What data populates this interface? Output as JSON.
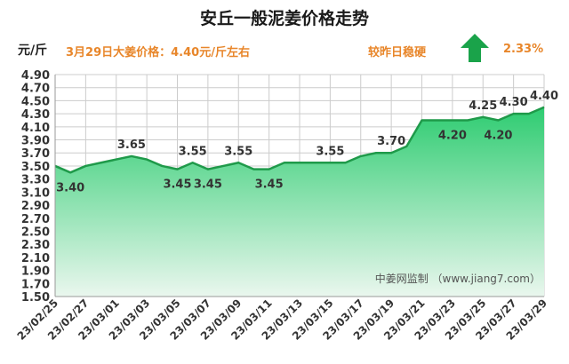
{
  "header": {
    "title": "安丘一般泥姜价格走势",
    "unit": "元/斤",
    "price_statement": "3月29日大姜价格：4.40元/斤左右",
    "compare_text": "较昨日稳硬",
    "change_pct": "2.33%",
    "trend_icon": "up-arrow-icon"
  },
  "colors": {
    "accent_orange": "#e8862a",
    "line_green": "#1f9a4a",
    "fill_top": "#2ecc71",
    "fill_bottom": "#eaf7ee",
    "arrow_green": "#1aa34a",
    "grid": "#cccccc"
  },
  "chart_data": {
    "type": "area",
    "x": [
      "23/02/25",
      "23/02/26",
      "23/02/27",
      "23/02/28",
      "23/03/01",
      "23/03/02",
      "23/03/03",
      "23/03/04",
      "23/03/05",
      "23/03/06",
      "23/03/07",
      "23/03/08",
      "23/03/09",
      "23/03/10",
      "23/03/11",
      "23/03/12",
      "23/03/13",
      "23/03/14",
      "23/03/15",
      "23/03/16",
      "23/03/17",
      "23/03/18",
      "23/03/19",
      "23/03/20",
      "23/03/21",
      "23/03/22",
      "23/03/23",
      "23/03/24",
      "23/03/25",
      "23/03/26",
      "23/03/27",
      "23/03/28",
      "23/03/29"
    ],
    "series": [
      {
        "values": [
          3.5,
          3.4,
          3.5,
          3.55,
          3.6,
          3.65,
          3.6,
          3.5,
          3.45,
          3.55,
          3.45,
          3.5,
          3.55,
          3.45,
          3.45,
          3.55,
          3.55,
          3.55,
          3.55,
          3.55,
          3.65,
          3.7,
          3.7,
          3.8,
          4.2,
          4.2,
          4.2,
          4.2,
          4.25,
          4.2,
          4.3,
          4.3,
          4.4
        ]
      }
    ],
    "x_tick_labels": [
      "23/02/25",
      "23/02/27",
      "23/03/01",
      "23/03/03",
      "23/03/05",
      "23/03/07",
      "23/03/09",
      "23/03/11",
      "23/03/13",
      "23/03/15",
      "23/03/17",
      "23/03/19",
      "23/03/21",
      "23/03/23",
      "23/03/25",
      "23/03/27",
      "23/03/29"
    ],
    "y_tick_labels": [
      "1.50",
      "1.70",
      "1.90",
      "2.10",
      "2.30",
      "2.50",
      "2.70",
      "2.90",
      "3.10",
      "3.30",
      "3.50",
      "3.70",
      "3.90",
      "4.10",
      "4.30",
      "4.50",
      "4.70",
      "4.90"
    ],
    "ylim": [
      1.5,
      4.9
    ],
    "data_labels": [
      {
        "index": 1,
        "text": "3.40",
        "pos": "below"
      },
      {
        "index": 5,
        "text": "3.65",
        "pos": "above"
      },
      {
        "index": 8,
        "text": "3.45",
        "pos": "below"
      },
      {
        "index": 9,
        "text": "3.55",
        "pos": "above"
      },
      {
        "index": 10,
        "text": "3.45",
        "pos": "below"
      },
      {
        "index": 12,
        "text": "3.55",
        "pos": "above"
      },
      {
        "index": 14,
        "text": "3.45",
        "pos": "below"
      },
      {
        "index": 18,
        "text": "3.55",
        "pos": "above"
      },
      {
        "index": 22,
        "text": "3.70",
        "pos": "above"
      },
      {
        "index": 26,
        "text": "4.20",
        "pos": "below"
      },
      {
        "index": 28,
        "text": "4.25",
        "pos": "above"
      },
      {
        "index": 29,
        "text": "4.20",
        "pos": "below"
      },
      {
        "index": 30,
        "text": "4.30",
        "pos": "above"
      },
      {
        "index": 32,
        "text": "4.40",
        "pos": "above"
      }
    ],
    "grid": true,
    "watermark": "中姜网监制 （www.jiang7.com）"
  }
}
